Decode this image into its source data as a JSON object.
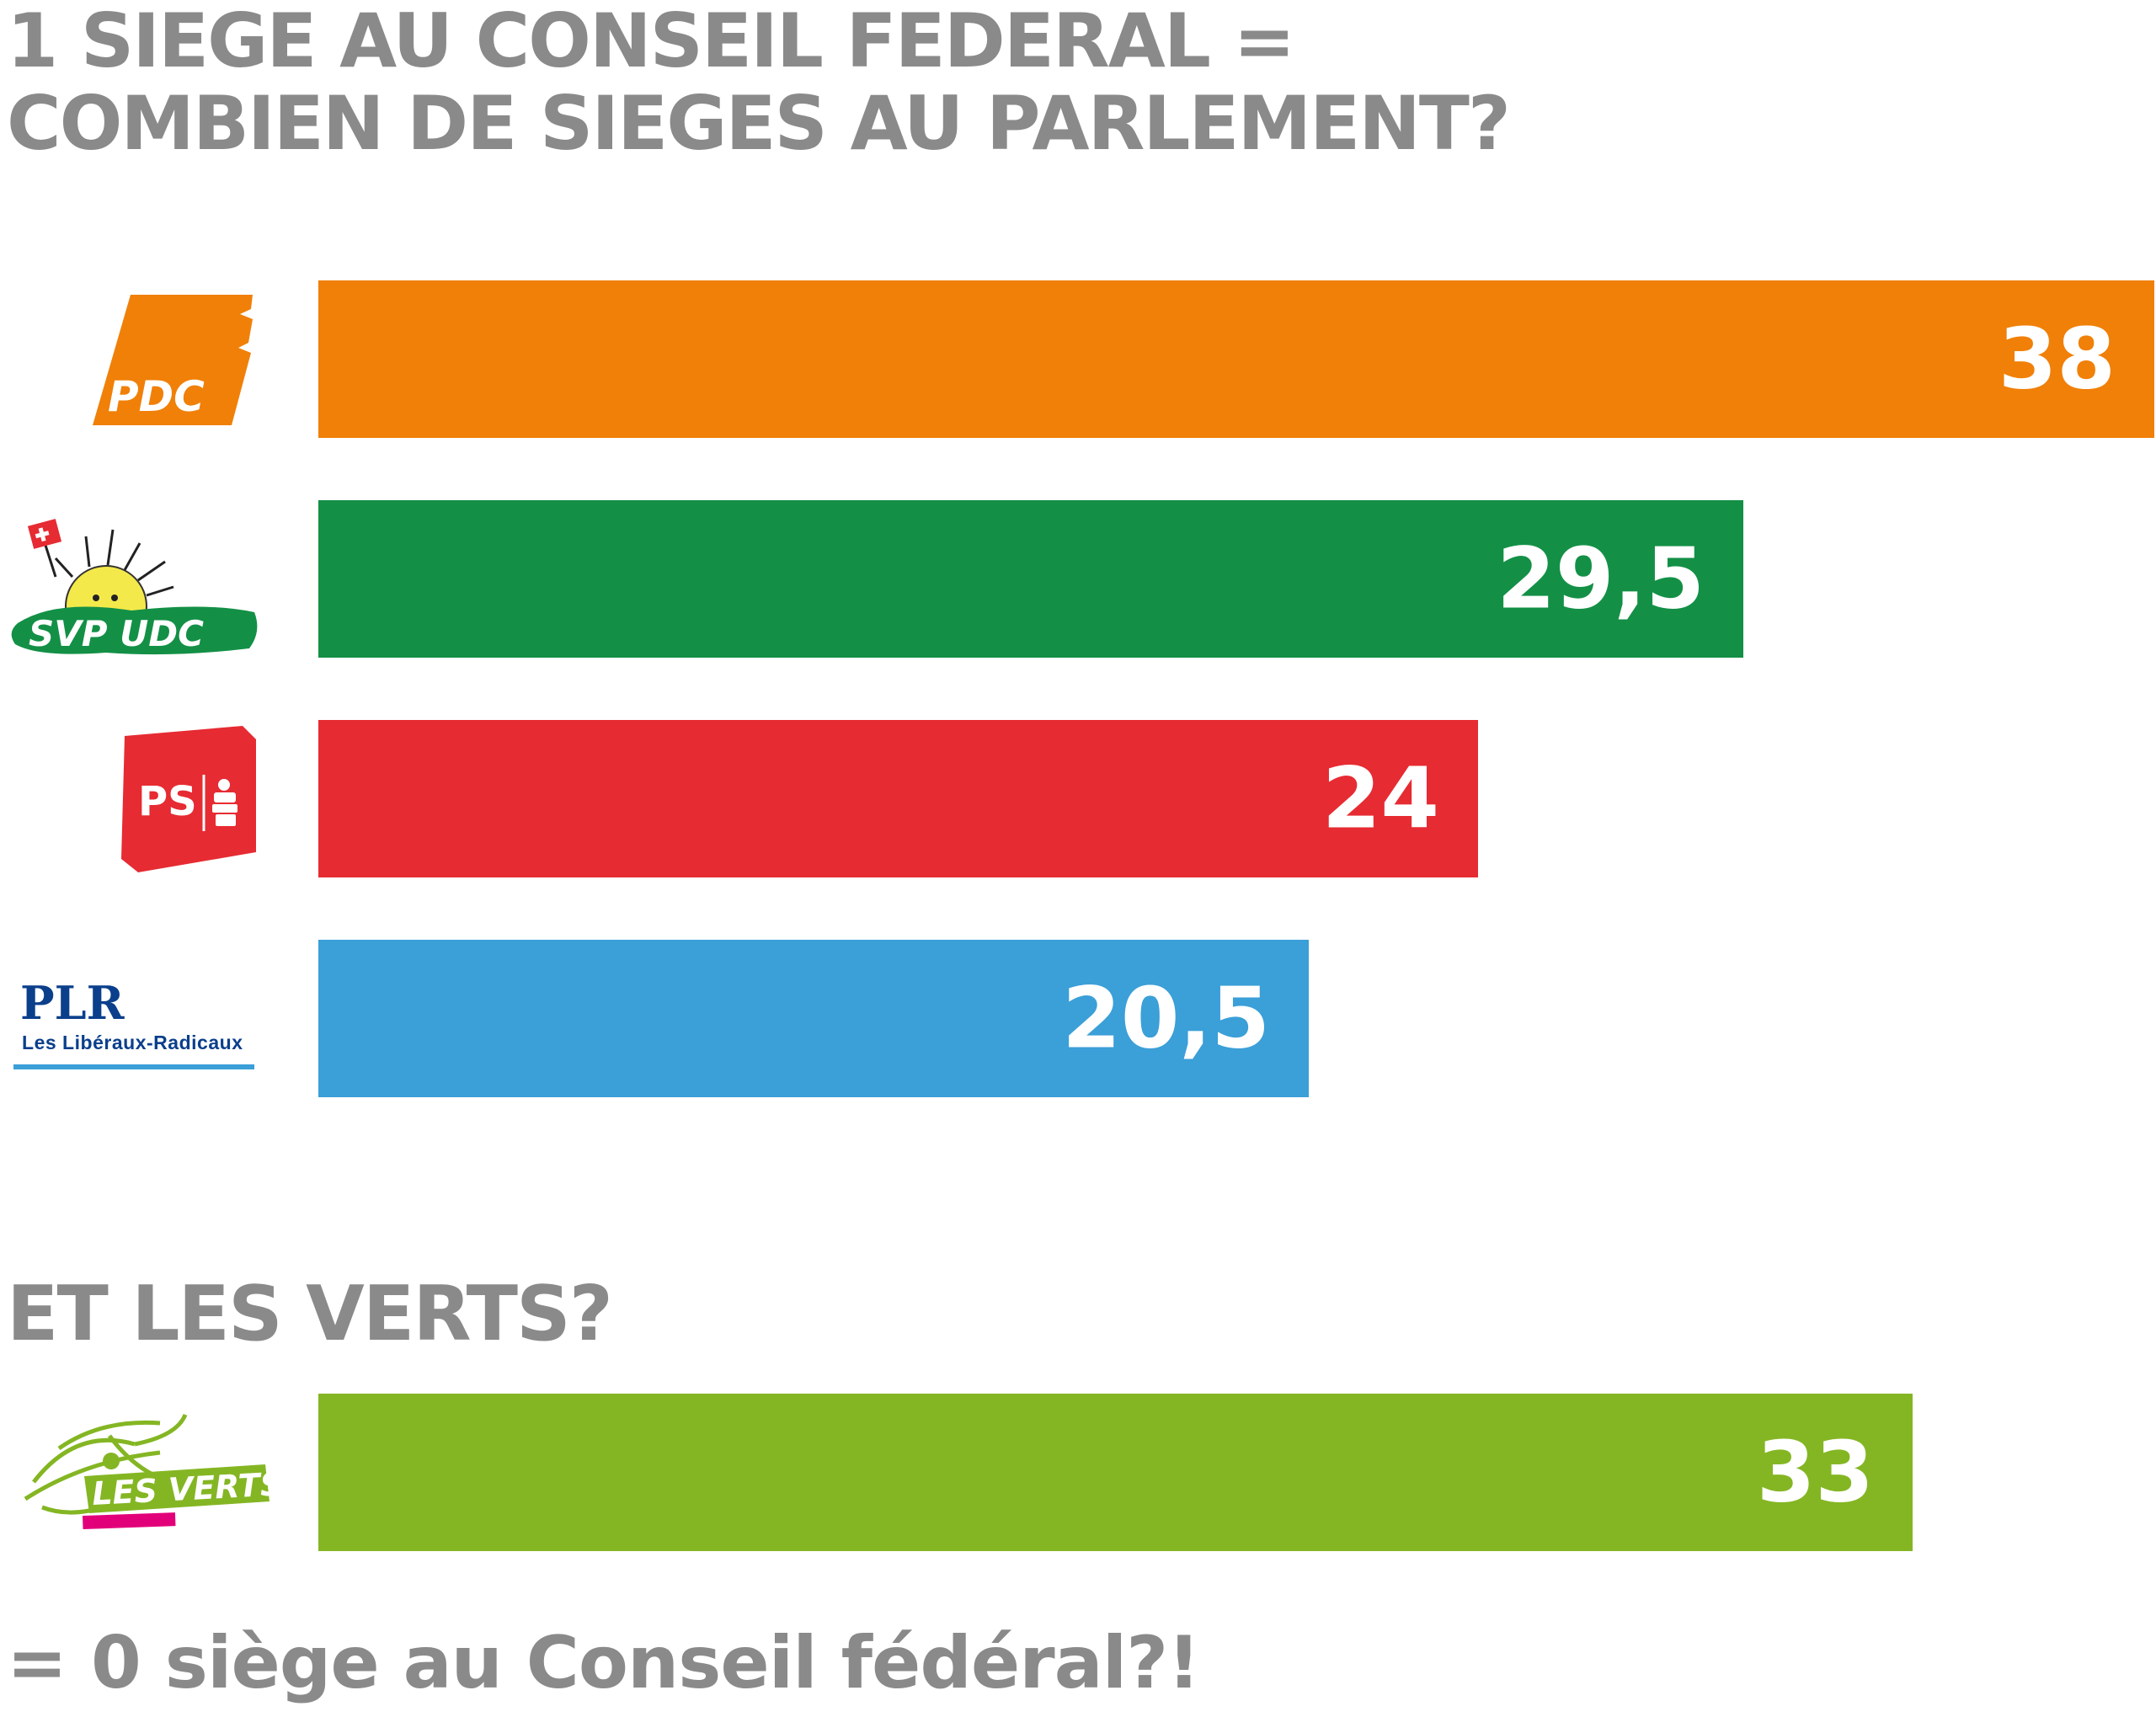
{
  "title_lines": [
    "1 SIEGE AU CONSEIL FEDERAL =",
    "COMBIEN DE SIEGES AU PARLEMENT?"
  ],
  "subtitle": "ET LES VERTS?",
  "footer": "= 0 siège au Conseil fédéral?!",
  "logos": {
    "pdc": "PDC",
    "svp": "SVP UDC",
    "ps": "PS",
    "plr_main": "PLR",
    "plr_sub": "Les Libéraux-Radicaux",
    "verts": "LES VERTS"
  },
  "colors": {
    "title": "#8a8a8a",
    "pdc": "#f08008",
    "svp": "#139046",
    "ps": "#e62b32",
    "plr": "#3b9fd8",
    "verts": "#84b623",
    "label": "#ffffff"
  },
  "chart_data": {
    "type": "bar",
    "orientation": "horizontal",
    "categories": [
      "PDC",
      "SVP UDC",
      "PS",
      "PLR",
      "LES VERTS"
    ],
    "values": [
      38,
      29.5,
      24,
      20.5,
      33
    ],
    "value_labels": [
      "38",
      "29,5",
      "24",
      "20,5",
      "33"
    ],
    "bar_colors": [
      "#f08008",
      "#139046",
      "#e62b32",
      "#3b9fd8",
      "#84b623"
    ],
    "xlim": [
      0,
      38
    ],
    "grid": false,
    "legend": "none"
  }
}
